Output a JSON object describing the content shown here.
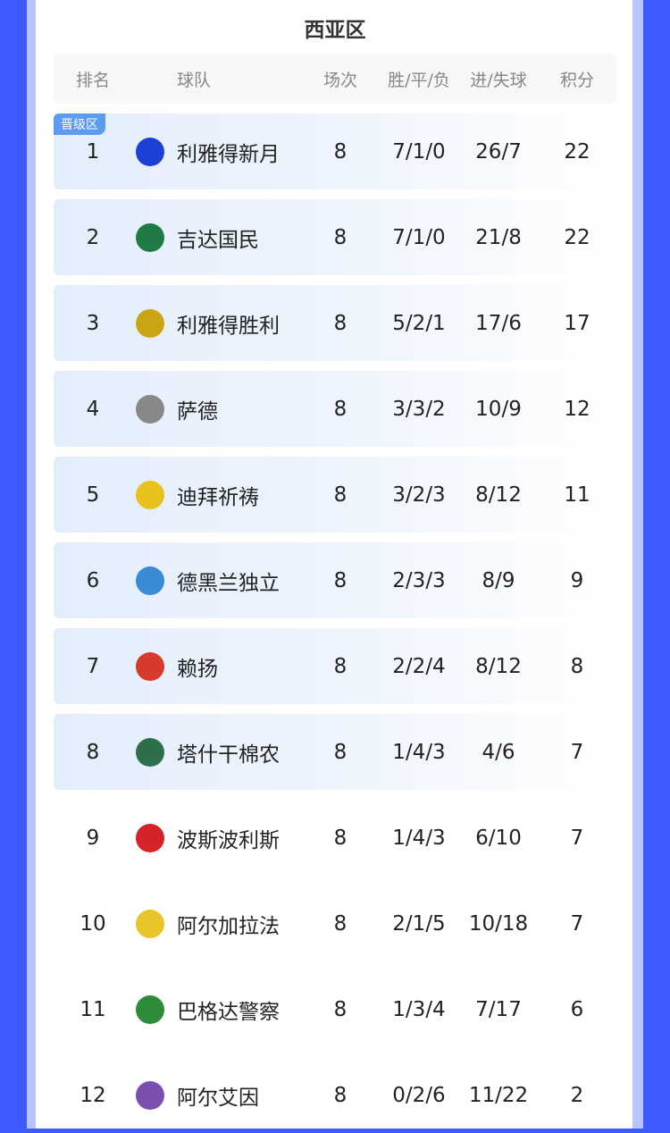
{
  "title": "西亚区",
  "headers": {
    "rank": "排名",
    "team": "球队",
    "games": "场次",
    "wdl": "胜/平/负",
    "goals": "进/失球",
    "points": "积分"
  },
  "promotion_badge": "晋级区",
  "rows": [
    {
      "rank": "1",
      "team": "利雅得新月",
      "games": "8",
      "wdl": "7/1/0",
      "goals": "26/7",
      "points": "22",
      "logo": "alhilal-logo",
      "color": "#1e3fd6"
    },
    {
      "rank": "2",
      "team": "吉达国民",
      "games": "8",
      "wdl": "7/1/0",
      "goals": "21/8",
      "points": "22",
      "logo": "alahli-logo",
      "color": "#1f7a45"
    },
    {
      "rank": "3",
      "team": "利雅得胜利",
      "games": "8",
      "wdl": "5/2/1",
      "goals": "17/6",
      "points": "17",
      "logo": "alnassr-logo",
      "color": "#c9a516"
    },
    {
      "rank": "4",
      "team": "萨德",
      "games": "8",
      "wdl": "3/3/2",
      "goals": "10/9",
      "points": "12",
      "logo": "alsadd-logo",
      "color": "#888888"
    },
    {
      "rank": "5",
      "team": "迪拜祈祷",
      "games": "8",
      "wdl": "3/2/3",
      "goals": "8/12",
      "points": "11",
      "logo": "alwasl-logo",
      "color": "#e6c21a"
    },
    {
      "rank": "6",
      "team": "德黑兰独立",
      "games": "8",
      "wdl": "2/3/3",
      "goals": "8/9",
      "points": "9",
      "logo": "esteghlal-logo",
      "color": "#3a8bd6"
    },
    {
      "rank": "7",
      "team": "赖扬",
      "games": "8",
      "wdl": "2/2/4",
      "goals": "8/12",
      "points": "8",
      "logo": "alrayyan-logo",
      "color": "#d63a2a"
    },
    {
      "rank": "8",
      "team": "塔什干棉农",
      "games": "8",
      "wdl": "1/4/3",
      "goals": "4/6",
      "points": "7",
      "logo": "pakhtakor-logo",
      "color": "#2f6e4a"
    },
    {
      "rank": "9",
      "team": "波斯波利斯",
      "games": "8",
      "wdl": "1/4/3",
      "goals": "6/10",
      "points": "7",
      "logo": "persepolis-logo",
      "color": "#d4242a"
    },
    {
      "rank": "10",
      "team": "阿尔加拉法",
      "games": "8",
      "wdl": "2/1/5",
      "goals": "10/18",
      "points": "7",
      "logo": "algharafa-logo",
      "color": "#e8c52a"
    },
    {
      "rank": "11",
      "team": "巴格达警察",
      "games": "8",
      "wdl": "1/3/4",
      "goals": "7/17",
      "points": "6",
      "logo": "alshorta-logo",
      "color": "#2e8b3a"
    },
    {
      "rank": "12",
      "team": "阿尔艾因",
      "games": "8",
      "wdl": "0/2/6",
      "goals": "11/22",
      "points": "2",
      "logo": "alain-logo",
      "color": "#7a4fb0"
    }
  ],
  "highlighted_rows": 8
}
